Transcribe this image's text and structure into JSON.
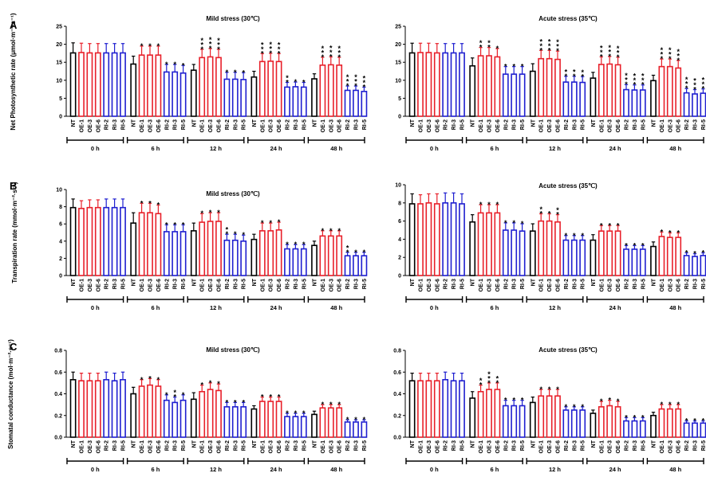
{
  "figure": {
    "panel_letters": [
      "A",
      "B",
      "C"
    ],
    "groups": [
      "0 h",
      "6 h",
      "12 h",
      "24 h",
      "48 h"
    ],
    "categories": [
      "NT",
      "OE-1",
      "OE-3",
      "OE-6",
      "RI-2",
      "RI-3",
      "RI-5"
    ],
    "colors": {
      "NT": "#000000",
      "OE": "#e8202a",
      "RI": "#1f1fd0"
    }
  },
  "chart_data": [
    {
      "type": "bar",
      "title": "Mild stress (30℃)",
      "ylabel": "Net Photosynthetic rate (μmol·m⁻²·s⁻¹)",
      "ylim": [
        0,
        25
      ],
      "yticks": [
        "0",
        "5",
        "10",
        "15",
        "20",
        "25"
      ],
      "categories": [
        "NT",
        "OE-1",
        "OE-3",
        "OE-6",
        "RI-2",
        "RI-3",
        "RI-5"
      ],
      "groups": [
        "0 h",
        "6 h",
        "12 h",
        "24 h",
        "48 h"
      ],
      "values": [
        [
          17.6,
          17.7,
          17.6,
          17.6,
          17.6,
          17.6,
          17.6
        ],
        [
          14.5,
          17.0,
          17.0,
          17.0,
          12.3,
          12.3,
          12.0
        ],
        [
          12.8,
          16.3,
          16.5,
          16.3,
          10.3,
          10.3,
          10.2
        ],
        [
          10.9,
          15.2,
          15.3,
          15.2,
          8.1,
          8.2,
          8.1
        ],
        [
          10.4,
          14.2,
          14.3,
          14.2,
          7.2,
          7.2,
          6.9
        ]
      ],
      "errors": [
        [
          2.8,
          2.6,
          2.6,
          2.6,
          2.6,
          2.6,
          2.6
        ],
        [
          2.2,
          2.5,
          2.5,
          2.5,
          2.1,
          2.1,
          2.1
        ],
        [
          1.6,
          2.3,
          2.3,
          2.3,
          1.9,
          1.9,
          1.9
        ],
        [
          1.6,
          2.2,
          2.2,
          2.2,
          1.3,
          1.3,
          1.3
        ],
        [
          1.4,
          2.2,
          2.2,
          2.2,
          1.2,
          1.2,
          1.2
        ]
      ],
      "stars": [
        [
          "",
          "",
          "",
          "",
          "",
          "",
          ""
        ],
        [
          "",
          "*",
          "*",
          "*",
          "*",
          "*",
          "*"
        ],
        [
          "",
          "***",
          "***",
          "***",
          "*",
          "*",
          "*"
        ],
        [
          "",
          "***",
          "***",
          "***",
          "**",
          "*",
          "*"
        ],
        [
          "",
          "***",
          "***",
          "***",
          "***",
          "***",
          "***"
        ]
      ]
    },
    {
      "type": "bar",
      "title": "Acute stress (35℃)",
      "ylabel": "",
      "ylim": [
        0,
        25
      ],
      "yticks": [
        "0",
        "5",
        "10",
        "15",
        "20",
        "25"
      ],
      "categories": [
        "NT",
        "OE-1",
        "OE-3",
        "OE-6",
        "RI-2",
        "RI-3",
        "RI-5"
      ],
      "groups": [
        "0 h",
        "6 h",
        "12 h",
        "24 h",
        "48 h"
      ],
      "values": [
        [
          17.6,
          17.7,
          17.7,
          17.6,
          17.6,
          17.6,
          17.6
        ],
        [
          14.0,
          16.8,
          16.8,
          16.5,
          11.7,
          11.7,
          11.7
        ],
        [
          12.5,
          16.0,
          16.0,
          15.8,
          9.5,
          9.5,
          9.4
        ],
        [
          10.6,
          14.4,
          14.5,
          14.3,
          7.4,
          7.3,
          7.3
        ],
        [
          9.9,
          13.8,
          13.8,
          13.4,
          6.5,
          6.2,
          6.4
        ]
      ],
      "errors": [
        [
          2.7,
          2.6,
          2.6,
          2.6,
          2.6,
          2.6,
          2.6
        ],
        [
          2.2,
          2.3,
          2.3,
          2.3,
          2.1,
          2.1,
          2.1
        ],
        [
          2.1,
          2.3,
          2.3,
          2.3,
          1.6,
          1.6,
          1.6
        ],
        [
          1.6,
          2.1,
          2.1,
          2.1,
          1.4,
          1.4,
          1.4
        ],
        [
          1.5,
          2.1,
          2.1,
          2.1,
          1.2,
          1.2,
          1.2
        ]
      ],
      "stars": [
        [
          "",
          "",
          "",
          "",
          "",
          "",
          ""
        ],
        [
          "",
          "**",
          "**",
          "*",
          "*",
          "*",
          "*"
        ],
        [
          "",
          "***",
          "***",
          "***",
          "**",
          "**",
          "**"
        ],
        [
          "",
          "***",
          "***",
          "***",
          "***",
          "***",
          "***"
        ],
        [
          "",
          "***",
          "***",
          "***",
          "***",
          "***",
          "***"
        ]
      ]
    },
    {
      "type": "bar",
      "title": "Mild stress (30℃)",
      "ylabel": "Transpiration rate (mmol·m⁻²·s⁻¹)",
      "ylim": [
        0,
        10
      ],
      "yticks": [
        "0",
        "2",
        "4",
        "6",
        "8",
        "10"
      ],
      "categories": [
        "NT",
        "OE-1",
        "OE-3",
        "OE-6",
        "RI-2",
        "RI-3",
        "RI-5"
      ],
      "groups": [
        "0 h",
        "6 h",
        "12 h",
        "24 h",
        "48 h"
      ],
      "values": [
        [
          7.9,
          7.8,
          7.9,
          7.9,
          7.9,
          7.9,
          7.9
        ],
        [
          6.1,
          7.3,
          7.3,
          7.2,
          5.1,
          5.1,
          5.1
        ],
        [
          5.2,
          6.2,
          6.3,
          6.3,
          4.1,
          4.1,
          4.0
        ],
        [
          4.2,
          5.2,
          5.2,
          5.3,
          3.1,
          3.1,
          3.1
        ],
        [
          3.5,
          4.6,
          4.6,
          4.6,
          2.3,
          2.3,
          2.3
        ]
      ],
      "errors": [
        [
          1.0,
          0.9,
          0.9,
          0.9,
          1.0,
          1.0,
          1.0
        ],
        [
          1.2,
          1.1,
          1.1,
          1.0,
          0.8,
          0.8,
          0.8
        ],
        [
          0.9,
          1.0,
          1.0,
          1.0,
          0.7,
          0.7,
          0.7
        ],
        [
          0.6,
          0.9,
          0.9,
          0.9,
          0.5,
          0.5,
          0.5
        ],
        [
          0.5,
          0.6,
          0.6,
          0.6,
          0.4,
          0.4,
          0.4
        ]
      ],
      "stars": [
        [
          "",
          "",
          "",
          "",
          "",
          "",
          ""
        ],
        [
          "",
          "*",
          "*",
          "*",
          "*",
          "*",
          "*"
        ],
        [
          "",
          "*",
          "*",
          "*",
          "**",
          "*",
          "*"
        ],
        [
          "",
          "*",
          "*",
          "*",
          "*",
          "*",
          "*"
        ],
        [
          "",
          "*",
          "*",
          "*",
          "**",
          "*",
          "*"
        ]
      ]
    },
    {
      "type": "bar",
      "title": "Acute stress (35℃)",
      "ylabel": "",
      "ylim": [
        0,
        10
      ],
      "yticks": [
        "0",
        "2",
        "4",
        "6",
        "8",
        "10"
      ],
      "categories": [
        "NT",
        "OE-1",
        "OE-3",
        "OE-6",
        "RI-2",
        "RI-3",
        "RI-5"
      ],
      "groups": [
        "0 h",
        "6 h",
        "12 h",
        "24 h",
        "48 h"
      ],
      "values": [
        [
          7.9,
          7.9,
          8.0,
          7.9,
          8.0,
          8.0,
          7.9
        ],
        [
          5.9,
          6.9,
          6.9,
          6.9,
          5.0,
          5.0,
          4.9
        ],
        [
          4.9,
          6.0,
          6.0,
          5.9,
          3.9,
          3.9,
          3.9
        ],
        [
          3.9,
          4.9,
          4.9,
          4.9,
          2.9,
          2.9,
          2.9
        ],
        [
          3.2,
          4.3,
          4.2,
          4.2,
          2.2,
          2.1,
          2.2
        ]
      ],
      "errors": [
        [
          1.1,
          1.0,
          1.0,
          1.1,
          1.1,
          1.1,
          1.1
        ],
        [
          0.8,
          0.9,
          0.9,
          0.9,
          0.8,
          0.8,
          0.8
        ],
        [
          0.8,
          0.8,
          0.8,
          0.8,
          0.5,
          0.5,
          0.5
        ],
        [
          0.6,
          0.6,
          0.6,
          0.6,
          0.4,
          0.4,
          0.4
        ],
        [
          0.5,
          0.5,
          0.5,
          0.5,
          0.3,
          0.3,
          0.3
        ]
      ],
      "stars": [
        [
          "",
          "",
          "",
          "",
          "",
          "",
          ""
        ],
        [
          "",
          "*",
          "*",
          "*",
          "*",
          "*",
          "*"
        ],
        [
          "",
          "**",
          "*",
          "**",
          "*",
          "*",
          "*"
        ],
        [
          "",
          "*",
          "*",
          "*",
          "*",
          "*",
          "*"
        ],
        [
          "",
          "*",
          "*",
          "*",
          "*",
          "*",
          "*"
        ]
      ]
    },
    {
      "type": "bar",
      "title": "Mild stress (30℃)",
      "ylabel": "Stomatal conductance (mol·m⁻²·s⁻¹)",
      "ylim": [
        0,
        0.8
      ],
      "yticks": [
        "0.0",
        "0.2",
        "0.4",
        "0.6",
        "0.8"
      ],
      "categories": [
        "NT",
        "OE-1",
        "OE-3",
        "OE-6",
        "RI-2",
        "RI-3",
        "RI-5"
      ],
      "groups": [
        "0 h",
        "6 h",
        "12 h",
        "24 h",
        "48 h"
      ],
      "values": [
        [
          0.53,
          0.52,
          0.52,
          0.52,
          0.53,
          0.52,
          0.53
        ],
        [
          0.4,
          0.47,
          0.48,
          0.47,
          0.34,
          0.32,
          0.34
        ],
        [
          0.35,
          0.42,
          0.44,
          0.43,
          0.28,
          0.28,
          0.28
        ],
        [
          0.26,
          0.33,
          0.33,
          0.33,
          0.19,
          0.19,
          0.19
        ],
        [
          0.21,
          0.27,
          0.27,
          0.27,
          0.14,
          0.14,
          0.14
        ]
      ],
      "errors": [
        [
          0.07,
          0.07,
          0.07,
          0.07,
          0.07,
          0.07,
          0.07
        ],
        [
          0.06,
          0.06,
          0.06,
          0.06,
          0.05,
          0.05,
          0.05
        ],
        [
          0.06,
          0.06,
          0.06,
          0.06,
          0.04,
          0.04,
          0.04
        ],
        [
          0.03,
          0.04,
          0.04,
          0.04,
          0.03,
          0.03,
          0.03
        ],
        [
          0.03,
          0.03,
          0.03,
          0.03,
          0.02,
          0.02,
          0.02
        ]
      ],
      "stars": [
        [
          "",
          "",
          "",
          "",
          "",
          "",
          ""
        ],
        [
          "",
          "*",
          "*",
          "*",
          "*",
          "**",
          "*"
        ],
        [
          "",
          "*",
          "*",
          "*",
          "*",
          "*",
          "*"
        ],
        [
          "",
          "*",
          "*",
          "*",
          "*",
          "*",
          "*"
        ],
        [
          "",
          "*",
          "*",
          "*",
          "*",
          "*",
          "*"
        ]
      ]
    },
    {
      "type": "bar",
      "title": "Acute stress (35℃)",
      "ylabel": "",
      "ylim": [
        0,
        0.8
      ],
      "yticks": [
        "0.0",
        "0.2",
        "0.4",
        "0.6",
        "0.8"
      ],
      "categories": [
        "NT",
        "OE-1",
        "OE-3",
        "OE-6",
        "RI-2",
        "RI-3",
        "RI-5"
      ],
      "groups": [
        "0 h",
        "6 h",
        "12 h",
        "24 h",
        "48 h"
      ],
      "values": [
        [
          0.52,
          0.52,
          0.52,
          0.52,
          0.53,
          0.52,
          0.52
        ],
        [
          0.36,
          0.42,
          0.44,
          0.44,
          0.29,
          0.29,
          0.29
        ],
        [
          0.32,
          0.38,
          0.38,
          0.38,
          0.25,
          0.25,
          0.25
        ],
        [
          0.22,
          0.28,
          0.29,
          0.28,
          0.15,
          0.15,
          0.15
        ],
        [
          0.2,
          0.26,
          0.26,
          0.26,
          0.13,
          0.13,
          0.13
        ]
      ],
      "errors": [
        [
          0.07,
          0.07,
          0.07,
          0.07,
          0.07,
          0.07,
          0.07
        ],
        [
          0.06,
          0.06,
          0.06,
          0.06,
          0.05,
          0.05,
          0.05
        ],
        [
          0.05,
          0.06,
          0.06,
          0.06,
          0.03,
          0.03,
          0.03
        ],
        [
          0.03,
          0.05,
          0.05,
          0.05,
          0.03,
          0.03,
          0.03
        ],
        [
          0.03,
          0.04,
          0.04,
          0.04,
          0.02,
          0.02,
          0.02
        ]
      ],
      "stars": [
        [
          "",
          "",
          "",
          "",
          "",
          "",
          ""
        ],
        [
          "",
          "**",
          "***",
          "**",
          "*",
          "*",
          "*"
        ],
        [
          "",
          "*",
          "*",
          "*",
          "*",
          "*",
          "*"
        ],
        [
          "",
          "*",
          "*",
          "*",
          "*",
          "*",
          "*"
        ],
        [
          "",
          "*",
          "*",
          "*",
          "*",
          "*",
          "*"
        ]
      ]
    }
  ]
}
